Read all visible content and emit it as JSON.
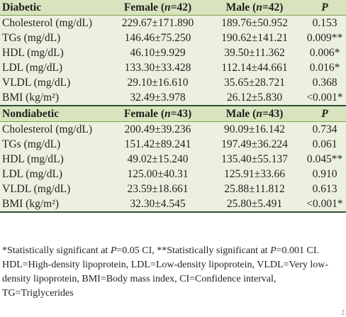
{
  "diabetic": {
    "label": "Diabetic",
    "female_header": {
      "pre": "Female (",
      "n": "n",
      "post": "=42)"
    },
    "male_header": {
      "pre": "Male (",
      "n": "n",
      "post": "=42)"
    },
    "p_header": "P",
    "rows": [
      {
        "param": "Cholesterol (mg/dL)",
        "female": "229.67±171.890",
        "male": "189.76±50.952",
        "p": "0.153"
      },
      {
        "param": "TGs (mg/dL)",
        "female": "146.46±75.250",
        "male": "190.62±141.21",
        "p": "0.009**"
      },
      {
        "param": "HDL (mg/dL)",
        "female": "46.10±9.929",
        "male": "39.50±11.362",
        "p": "0.006*"
      },
      {
        "param": "LDL (mg/dL)",
        "female": "133.30±33.428",
        "male": "112.14±44.661",
        "p": "0.016*"
      },
      {
        "param": "VLDL (mg/dL)",
        "female": "29.10±16.610",
        "male": "35.65±28.721",
        "p": "0.368"
      },
      {
        "param": "BMI (kg/m²)",
        "female": "32.49±3.978",
        "male": "26.12±5.830",
        "p": "<0.001*"
      }
    ]
  },
  "nondiabetic": {
    "label": "Nondiabetic",
    "female_header": {
      "pre": "Female (",
      "n": "n",
      "post": "=43)"
    },
    "male_header": {
      "pre": "Male (",
      "n": "n",
      "post": "=43)"
    },
    "p_header": "P",
    "rows": [
      {
        "param": "Cholesterol (mg/dL)",
        "female": "200.49±39.236",
        "male": "90.09±16.142",
        "p": "0.734"
      },
      {
        "param": "TGs (mg/dL)",
        "female": "151.42±89.241",
        "male": "197.49±36.224",
        "p": "0.061"
      },
      {
        "param": "HDL (mg/dL)",
        "female": "49.02±15.240",
        "male": "135.40±55.137",
        "p": "0.045**"
      },
      {
        "param": "LDL (mg/dL)",
        "female": "125.00±40.31",
        "male": "125.91±33.66",
        "p": "0.910"
      },
      {
        "param": "VLDL (mg/dL)",
        "female": "23.59±18.661",
        "male": "25.88±11.812",
        "p": "0.613"
      },
      {
        "param": "BMI (kg/m²)",
        "female": "32.30±4.545",
        "male": "25.80±5.491",
        "p": "<0.001*"
      }
    ]
  },
  "footnote": {
    "part1": "*Statistically significant at ",
    "p1": "P",
    "part2": "=0.05 CI, **Statistically significant at ",
    "p2": "P",
    "part3": "=0.001 CI. HDL=High-density lipoprotein, LDL=Low-density lipoprotein, VLDL=Very low-density lipoprotein, BMI=Body mass index, CI=Confidence interval, TG=Triglycerides"
  },
  "page_mark": "2"
}
